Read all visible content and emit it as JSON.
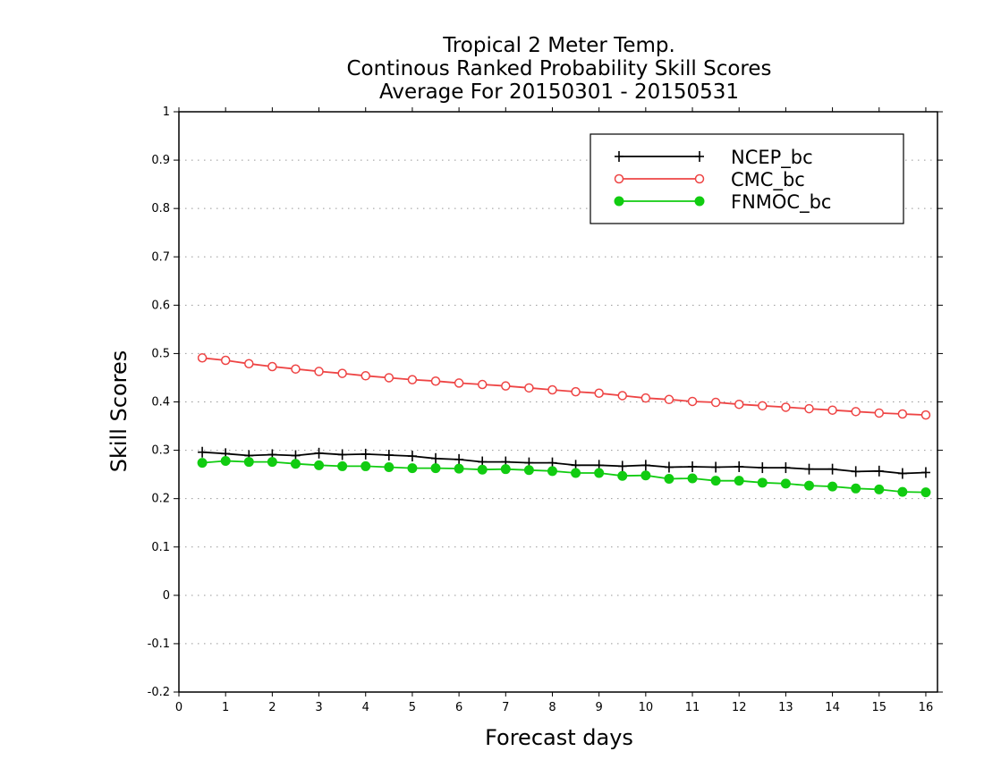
{
  "chart_data": {
    "type": "line",
    "title": [
      "Tropical 2 Meter Temp.",
      "Continous Ranked Probability Skill Scores",
      "Average For 20150301 - 20150531"
    ],
    "xlabel": "Forecast days",
    "ylabel": "Skill Scores",
    "xlim": [
      0,
      16.25
    ],
    "ylim": [
      -0.2,
      1
    ],
    "xticks": [
      0,
      1,
      2,
      3,
      4,
      5,
      6,
      7,
      8,
      9,
      10,
      11,
      12,
      13,
      14,
      15,
      16
    ],
    "xtick_labels": [
      "0",
      "1",
      "2",
      "3",
      "4",
      "5",
      "6",
      "7",
      "8",
      "9",
      "10",
      "11",
      "12",
      "13",
      "14",
      "15",
      "16"
    ],
    "yticks": [
      -0.2,
      -0.1,
      0,
      0.1,
      0.2,
      0.3,
      0.4,
      0.5,
      0.6,
      0.7,
      0.8,
      0.9,
      1
    ],
    "ytick_labels": [
      "-0.2",
      "-0.1",
      "0",
      "0.1",
      "0.2",
      "0.3",
      "0.4",
      "0.5",
      "0.6",
      "0.7",
      "0.8",
      "0.9",
      "1"
    ],
    "grid": "horizontal dotted",
    "legend_position": "top-right",
    "x": [
      0.5,
      1,
      1.5,
      2,
      2.5,
      3,
      3.5,
      4,
      4.5,
      5,
      5.5,
      6,
      6.5,
      7,
      7.5,
      8,
      8.5,
      9,
      9.5,
      10,
      10.5,
      11,
      11.5,
      12,
      12.5,
      13,
      13.5,
      14,
      14.5,
      15,
      15.5,
      16
    ],
    "series": [
      {
        "name": "NCEP_bc",
        "color": "#000000",
        "marker": "plus",
        "values": [
          0.296,
          0.293,
          0.289,
          0.291,
          0.289,
          0.294,
          0.291,
          0.292,
          0.29,
          0.288,
          0.283,
          0.281,
          0.276,
          0.276,
          0.274,
          0.274,
          0.269,
          0.269,
          0.267,
          0.269,
          0.265,
          0.266,
          0.265,
          0.266,
          0.264,
          0.264,
          0.261,
          0.261,
          0.256,
          0.257,
          0.252,
          0.254
        ]
      },
      {
        "name": "CMC_bc",
        "color": "#ee4444",
        "marker": "open-circle",
        "values": [
          0.491,
          0.486,
          0.479,
          0.473,
          0.468,
          0.463,
          0.459,
          0.454,
          0.45,
          0.446,
          0.443,
          0.439,
          0.436,
          0.433,
          0.429,
          0.425,
          0.421,
          0.418,
          0.413,
          0.408,
          0.405,
          0.401,
          0.399,
          0.395,
          0.392,
          0.389,
          0.386,
          0.383,
          0.38,
          0.377,
          0.375,
          0.373
        ]
      },
      {
        "name": "FNMOC_bc",
        "color": "#11cc11",
        "marker": "filled-circle",
        "values": [
          0.274,
          0.278,
          0.276,
          0.276,
          0.272,
          0.269,
          0.267,
          0.267,
          0.265,
          0.263,
          0.263,
          0.262,
          0.26,
          0.261,
          0.259,
          0.257,
          0.253,
          0.253,
          0.247,
          0.248,
          0.241,
          0.242,
          0.237,
          0.237,
          0.233,
          0.231,
          0.227,
          0.225,
          0.221,
          0.219,
          0.214,
          0.213
        ]
      }
    ]
  }
}
